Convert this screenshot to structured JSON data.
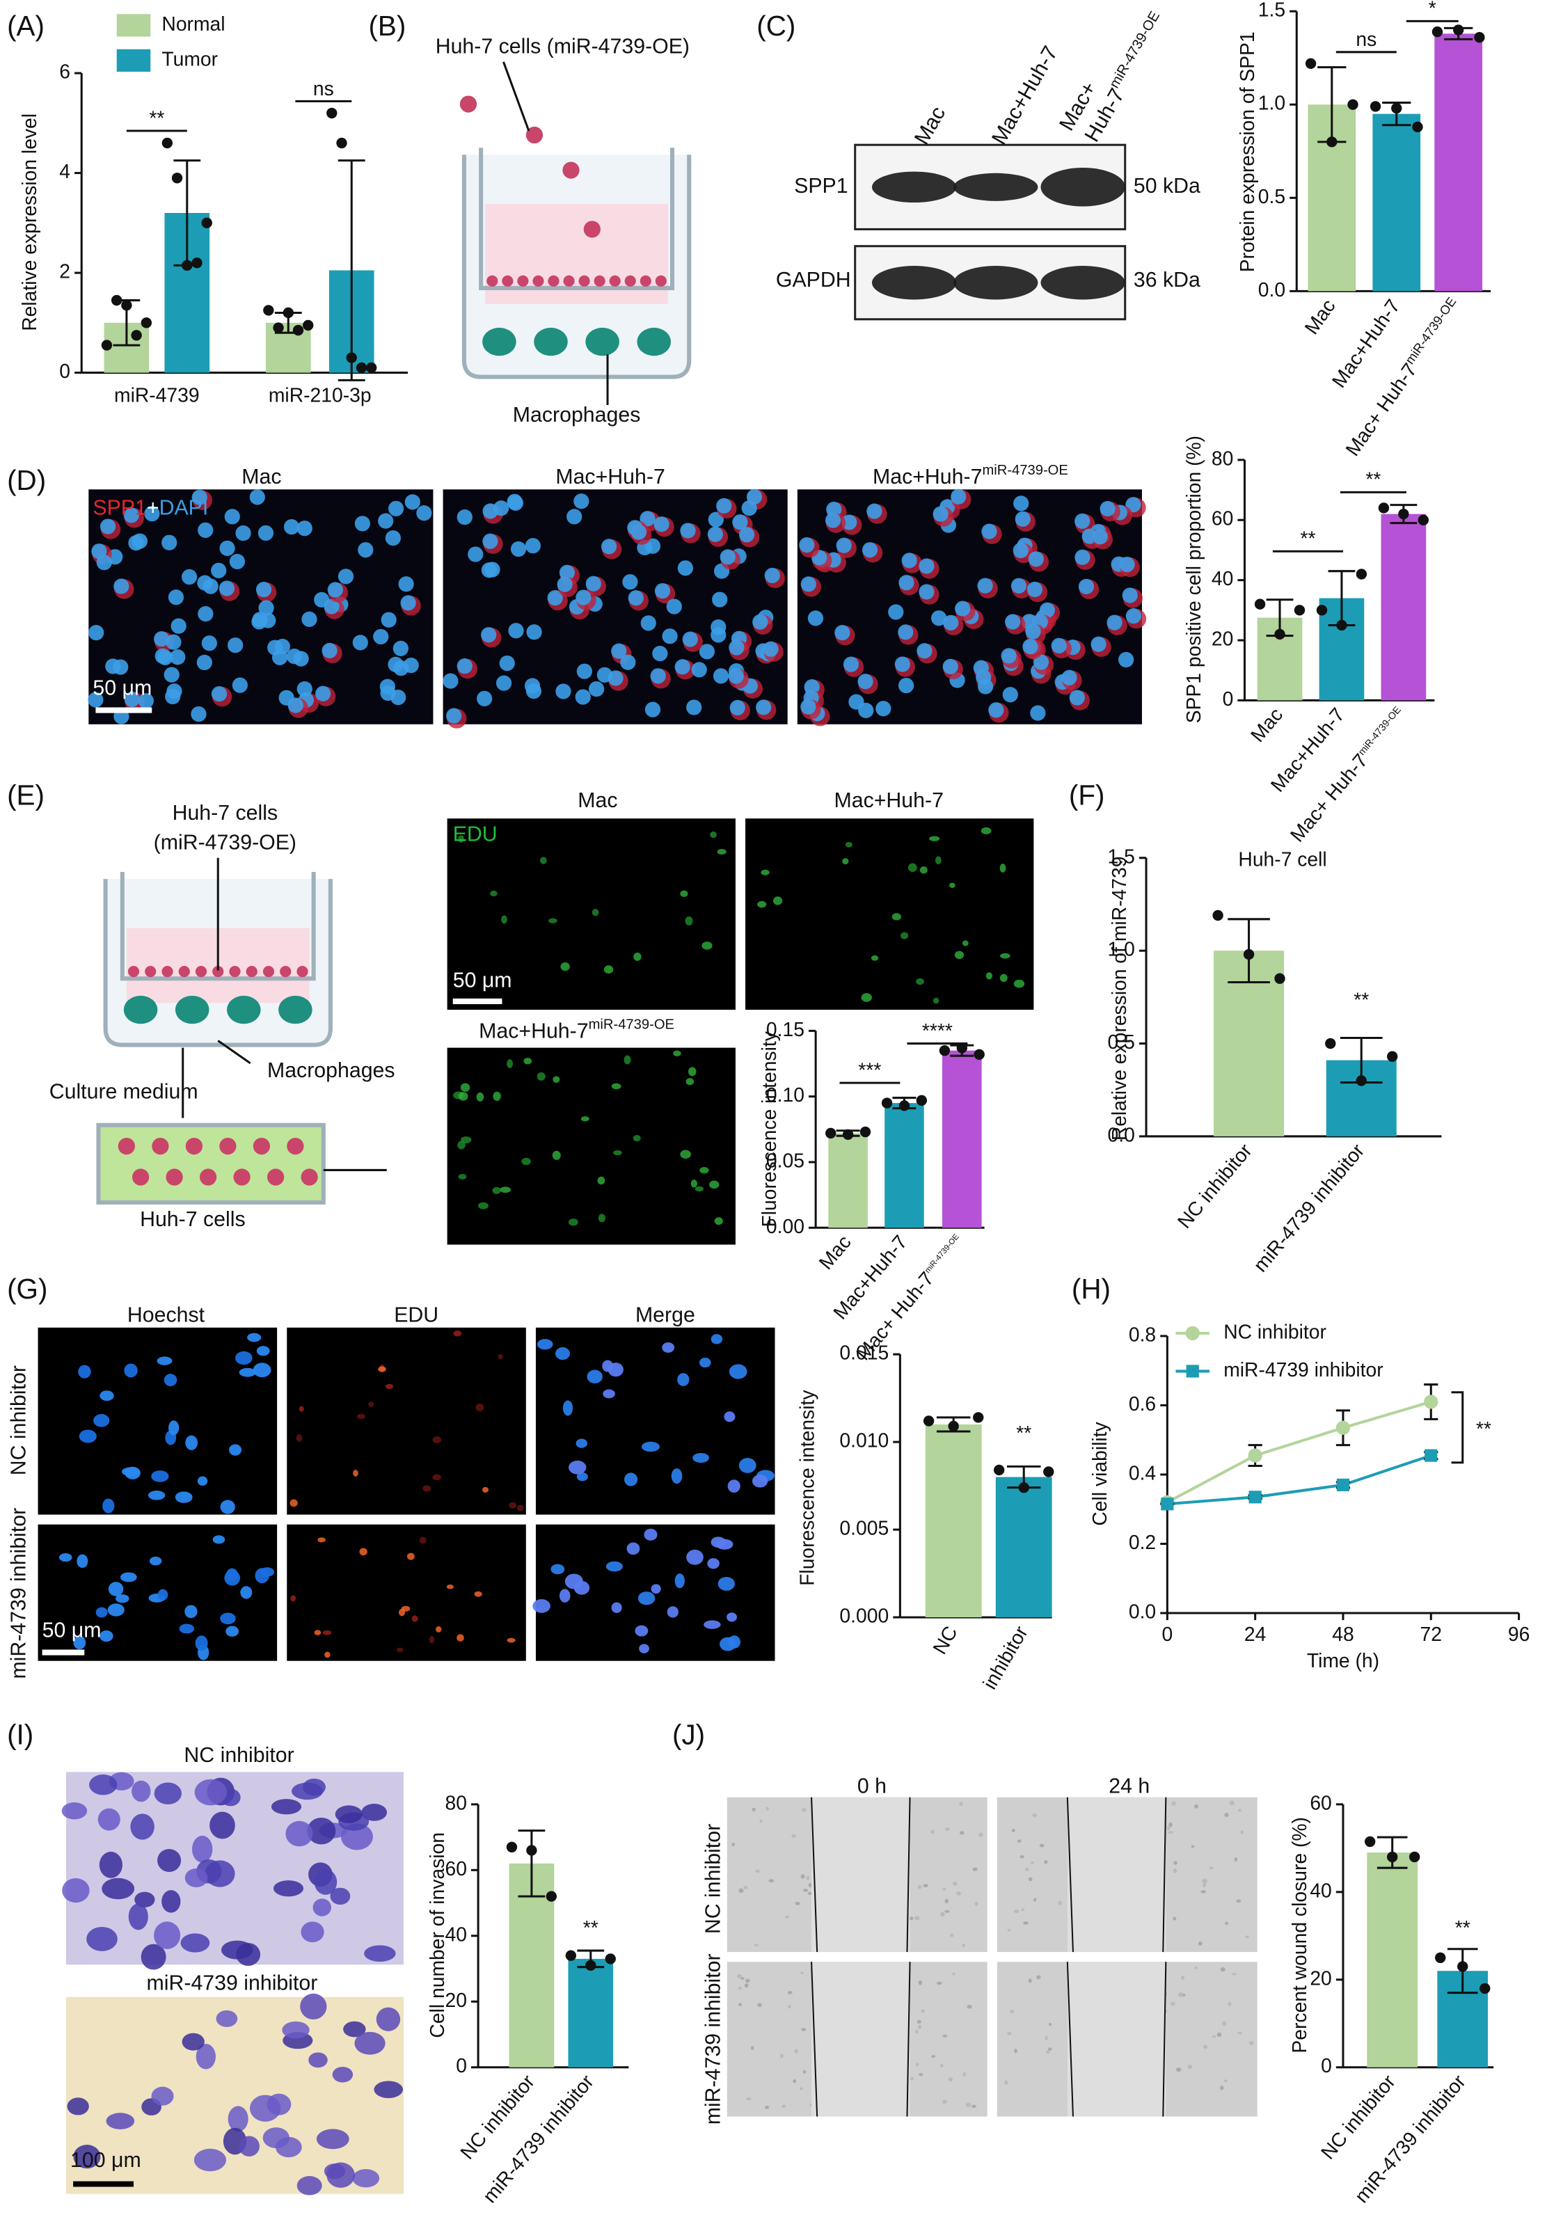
{
  "panel_labels": [
    "(A)",
    "(B)",
    "(C)",
    "(D)",
    "(E)",
    "(F)",
    "(G)",
    "(H)",
    "(I)",
    "(J)"
  ],
  "chart_data": [
    {
      "type": "bar",
      "ylabel": "Relative expression level",
      "categories": [
        "miR-4739",
        "miR-210-3p"
      ],
      "series": [
        {
          "name": "Normal",
          "color": "#b3d49a",
          "values": [
            1.0,
            1.0
          ],
          "errors": [
            0.45,
            0.2
          ],
          "points": [
            [
              0.55,
              1.45,
              1.35,
              0.75,
              1.0
            ],
            [
              1.25,
              0.9,
              1.2,
              0.85,
              0.95
            ]
          ]
        },
        {
          "name": "Tumor",
          "color": "#1c9db5",
          "values": [
            3.2,
            2.05
          ],
          "errors": [
            1.05,
            2.2
          ],
          "points": [
            [
              4.6,
              3.9,
              2.15,
              2.2,
              3.0
            ],
            [
              5.2,
              4.6,
              0.3,
              0.1,
              0.1
            ]
          ]
        }
      ],
      "ylim": [
        0,
        6
      ],
      "yticks": [
        0,
        2,
        4,
        6
      ],
      "annotations": [
        "**",
        "ns"
      ]
    },
    {
      "type": "bar",
      "ylabel": "Protein expression of SPP1",
      "categories": [
        "Mac",
        "Mac+Huh-7",
        "Mac+ Huh-7"
      ],
      "category_superscripts": [
        null,
        null,
        "miR-4739-OE"
      ],
      "values": [
        1.0,
        0.95,
        1.38
      ],
      "errors": [
        0.2,
        0.06,
        0.03
      ],
      "points": [
        [
          1.22,
          0.8,
          1.0
        ],
        [
          0.99,
          0.98,
          0.88
        ],
        [
          1.39,
          1.4,
          1.36
        ]
      ],
      "colors": [
        "#b3d49a",
        "#1c9db5",
        "#b552d6"
      ],
      "ylim": [
        0,
        1.5
      ],
      "yticks": [
        {
          "value": 0,
          "label": "0.0"
        },
        {
          "value": 0.5,
          "label": "0.5"
        },
        {
          "value": 1,
          "label": "1.0"
        },
        {
          "value": 1.5,
          "label": "1.5"
        }
      ],
      "annotations": [
        "ns",
        "*"
      ]
    },
    {
      "type": "bar",
      "ylabel": "SPP1 positive cell proportion (%)",
      "categories": [
        "Mac",
        "Mac+Huh-7",
        "Mac+ Huh-7"
      ],
      "category_superscripts": [
        null,
        null,
        "miR-4739-OE"
      ],
      "values": [
        27.5,
        34,
        62
      ],
      "errors": [
        6,
        9,
        3
      ],
      "points": [
        [
          32,
          22,
          30
        ],
        [
          30,
          25,
          42
        ],
        [
          64,
          62,
          60
        ]
      ],
      "colors": [
        "#b3d49a",
        "#1c9db5",
        "#b552d6"
      ],
      "ylim": [
        0,
        80
      ],
      "yticks": [
        0,
        20,
        40,
        60,
        80
      ],
      "annotations": [
        "**",
        "**"
      ]
    },
    {
      "type": "bar",
      "ylabel": "Fluorescence intensity",
      "categories": [
        "Mac",
        "Mac+Huh-7",
        "Mac+ Huh-7"
      ],
      "category_superscripts": [
        null,
        null,
        "miR-4739-OE"
      ],
      "values": [
        0.072,
        0.095,
        0.135
      ],
      "errors": [
        0.002,
        0.004,
        0.004
      ],
      "points": [
        [
          0.072,
          0.071,
          0.073
        ],
        [
          0.095,
          0.093,
          0.097
        ],
        [
          0.135,
          0.137,
          0.132
        ]
      ],
      "colors": [
        "#b3d49a",
        "#1c9db5",
        "#b552d6"
      ],
      "ylim": [
        0,
        0.15
      ],
      "yticks": [
        {
          "value": 0,
          "label": "0.00"
        },
        {
          "value": 0.05,
          "label": "0.05"
        },
        {
          "value": 0.1,
          "label": "0.10"
        },
        {
          "value": 0.15,
          "label": "0.15"
        }
      ],
      "annotations": [
        "***",
        "****"
      ]
    },
    {
      "type": "bar",
      "title": "Huh-7 cell",
      "ylabel": "Relative expression of miR-4739",
      "categories": [
        "NC inhibitor",
        "miR-4739 inhibitor"
      ],
      "values": [
        1.0,
        0.41
      ],
      "errors": [
        0.17,
        0.12
      ],
      "points": [
        [
          1.19,
          0.98,
          0.85
        ],
        [
          0.5,
          0.3,
          0.43
        ]
      ],
      "colors": [
        "#b3d49a",
        "#1c9db5"
      ],
      "ylim": [
        0,
        1.5
      ],
      "yticks": [
        {
          "value": 0,
          "label": "0.0"
        },
        {
          "value": 0.5,
          "label": "0.5"
        },
        {
          "value": 1,
          "label": "1.0"
        },
        {
          "value": 1.5,
          "label": "1.5"
        }
      ],
      "annotations": [
        "**"
      ]
    },
    {
      "type": "bar",
      "ylabel": "Fluorescence intensity",
      "categories": [
        "NC",
        "inhibitor"
      ],
      "values": [
        0.011,
        0.008
      ],
      "errors": [
        0.0004,
        0.0006
      ],
      "points": [
        [
          0.0112,
          0.0109,
          0.0114
        ],
        [
          0.0084,
          0.0074,
          0.0083
        ]
      ],
      "colors": [
        "#b3d49a",
        "#1c9db5"
      ],
      "ylim": [
        0,
        0.015
      ],
      "yticks": [
        {
          "value": 0,
          "label": "0.000"
        },
        {
          "value": 0.005,
          "label": "0.005"
        },
        {
          "value": 0.01,
          "label": "0.010"
        },
        {
          "value": 0.015,
          "label": "0.015"
        }
      ],
      "annotations": [
        "**"
      ]
    },
    {
      "type": "line",
      "xlabel": "Time (h)",
      "ylabel": "Cell viability",
      "x": [
        0,
        24,
        48,
        72
      ],
      "xlim": [
        0,
        96
      ],
      "xticks": [
        0,
        24,
        48,
        72,
        96
      ],
      "series": [
        {
          "name": "NC inhibitor",
          "color": "#b3d49a",
          "marker": "circle",
          "values": [
            0.32,
            0.455,
            0.535,
            0.61
          ],
          "errors": [
            0,
            0.03,
            0.05,
            0.05
          ]
        },
        {
          "name": "miR-4739 inhibitor",
          "color": "#1c9db5",
          "marker": "square",
          "values": [
            0.315,
            0.335,
            0.37,
            0.455
          ],
          "errors": [
            0,
            0.005,
            0.008,
            0.01
          ]
        }
      ],
      "ylim": [
        0,
        0.8
      ],
      "yticks": [
        {
          "value": 0,
          "label": "0.0"
        },
        {
          "value": 0.2,
          "label": "0.2"
        },
        {
          "value": 0.4,
          "label": "0.4"
        },
        {
          "value": 0.6,
          "label": "0.6"
        },
        {
          "value": 0.8,
          "label": "0.8"
        }
      ],
      "annotations": [
        "**"
      ]
    },
    {
      "type": "bar",
      "ylabel": "Cell number of invasion",
      "categories": [
        "NC inhibitor",
        "miR-4739 inhibitor"
      ],
      "values": [
        62,
        33
      ],
      "errors": [
        10,
        2.5
      ],
      "points": [
        [
          67,
          66,
          52
        ],
        [
          34,
          31,
          33
        ]
      ],
      "colors": [
        "#b3d49a",
        "#1c9db5"
      ],
      "ylim": [
        0,
        80
      ],
      "yticks": [
        0,
        20,
        40,
        60,
        80
      ],
      "annotations": [
        "**"
      ]
    },
    {
      "type": "bar",
      "ylabel": "Percent wound closure (%)",
      "categories": [
        "NC inhibitor",
        "miR-4739 inhibitor"
      ],
      "values": [
        49,
        22
      ],
      "errors": [
        3.5,
        5
      ],
      "points": [
        [
          51.5,
          48,
          48
        ],
        [
          25,
          23,
          18
        ]
      ],
      "colors": [
        "#b3d49a",
        "#1c9db5"
      ],
      "ylim": [
        0,
        60
      ],
      "yticks": [
        0,
        20,
        40,
        60
      ],
      "annotations": [
        "**"
      ]
    }
  ],
  "diagram_b": {
    "cells_label": "Huh-7 cells (miR-4739-OE)",
    "macrophages_label": "Macrophages"
  },
  "blot_c": {
    "lanes": [
      "Mac",
      "Mac+Huh-7",
      "Mac+"
    ],
    "lane3_line2": "Huh-7",
    "lane3_sup": "miR-4739-OE",
    "proteins": [
      "SPP1",
      "GAPDH"
    ],
    "sizes": [
      "50 kDa",
      "36 kDa"
    ]
  },
  "images_d": {
    "titles": [
      "Mac",
      "Mac+Huh-7",
      "Mac+Huh-7"
    ],
    "title_sup": "miR-4739-OE",
    "stain": [
      "SPP1",
      "+",
      "DAPI"
    ],
    "scale_bar": "50 μm"
  },
  "diagram_e": {
    "cells_label": [
      "Huh-7 cells",
      "(miR-4739-OE)"
    ],
    "macrophages_label": "Macrophages",
    "medium_label": "Culture medium",
    "bottom_label": "Huh-7 cells"
  },
  "images_e": {
    "titles": [
      "Mac",
      "Mac+Huh-7",
      "Mac+Huh-7"
    ],
    "title_sup": "miR-4739-OE",
    "stain": "EDU",
    "scale_bar": "50 μm"
  },
  "images_g": {
    "columns": [
      "Hoechst",
      "EDU",
      "Merge"
    ],
    "rows": [
      "NC inhibitor",
      "miR-4739 inhibitor"
    ],
    "scale_bar": "50 μm"
  },
  "images_i": {
    "titles": [
      "NC inhibitor",
      "miR-4739 inhibitor"
    ],
    "scale_bar": "100 μm"
  },
  "images_j": {
    "columns": [
      "0 h",
      "24 h"
    ],
    "rows": [
      "NC inhibitor",
      "miR-4739 inhibitor"
    ]
  }
}
